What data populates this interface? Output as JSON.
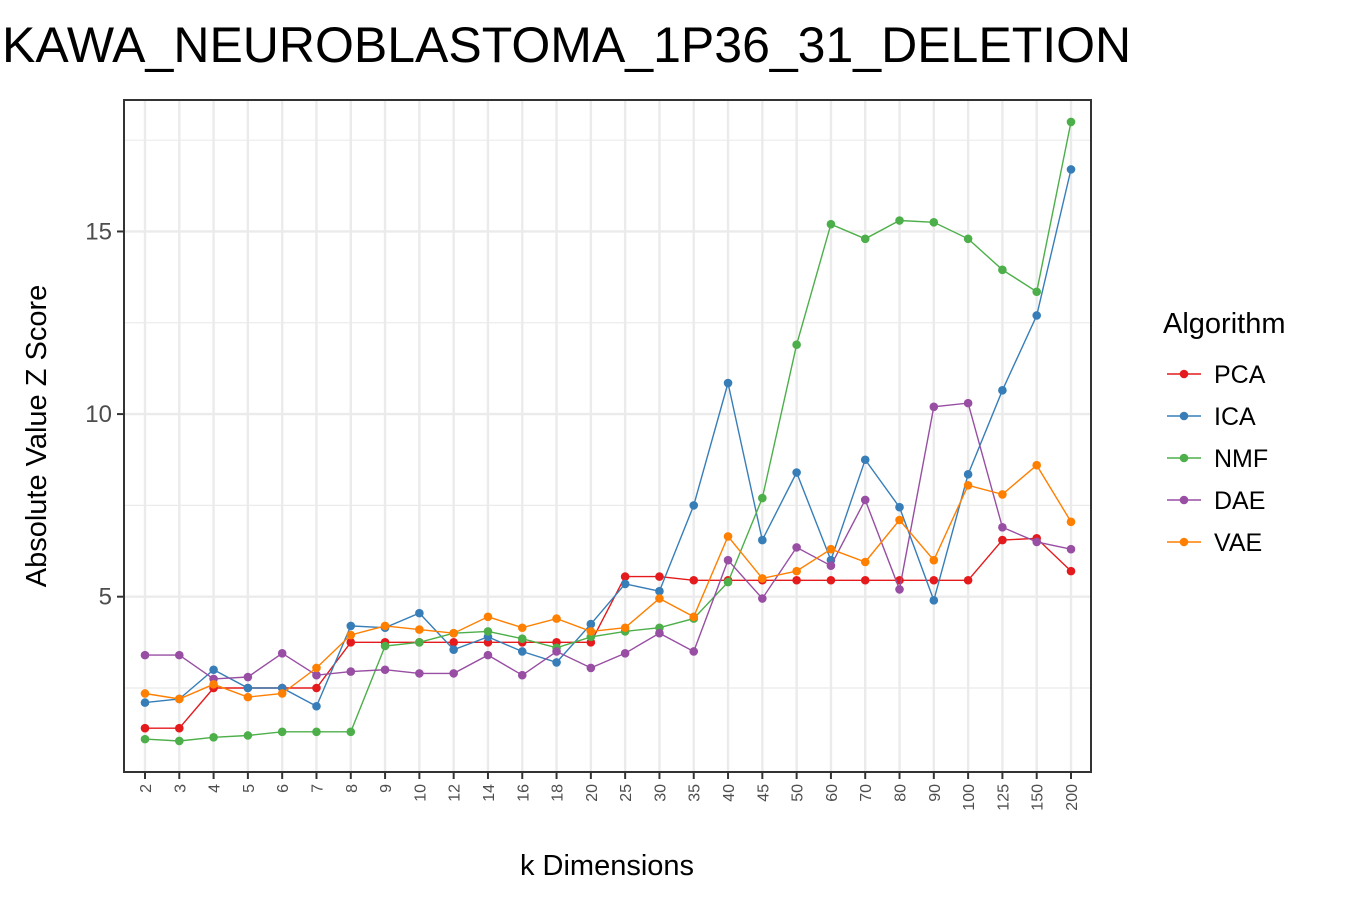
{
  "chart_data": {
    "type": "line",
    "title": "KAWA_NEUROBLASTOMA_1P36_31_DELETION",
    "xlabel": "k Dimensions",
    "ylabel": "Absolute Value Z Score",
    "categories": [
      "2",
      "3",
      "4",
      "5",
      "6",
      "7",
      "8",
      "9",
      "10",
      "12",
      "14",
      "16",
      "18",
      "20",
      "25",
      "30",
      "35",
      "40",
      "45",
      "50",
      "60",
      "70",
      "80",
      "90",
      "100",
      "125",
      "150",
      "200"
    ],
    "ylim": [
      0.2,
      18.6
    ],
    "yticks": [
      5,
      10,
      15
    ],
    "ytick_labels": [
      "5",
      "10",
      "15"
    ],
    "grid": true,
    "legend": {
      "title": "Algorithm",
      "position": "right"
    },
    "series": [
      {
        "name": "PCA",
        "color": "#E41A1C",
        "values": [
          1.4,
          1.4,
          2.5,
          2.5,
          2.5,
          2.5,
          3.75,
          3.75,
          3.75,
          3.75,
          3.75,
          3.75,
          3.75,
          3.75,
          5.55,
          5.55,
          5.45,
          5.45,
          5.45,
          5.45,
          5.45,
          5.45,
          5.45,
          5.45,
          5.45,
          6.55,
          6.6,
          5.7
        ]
      },
      {
        "name": "ICA",
        "color": "#377EB8",
        "values": [
          2.1,
          2.2,
          3.0,
          2.5,
          2.5,
          2.0,
          4.2,
          4.15,
          4.55,
          3.55,
          3.9,
          3.5,
          3.2,
          4.25,
          5.35,
          5.15,
          7.5,
          10.85,
          6.55,
          8.4,
          6.0,
          8.75,
          7.45,
          4.9,
          8.35,
          10.65,
          12.7,
          16.7
        ]
      },
      {
        "name": "NMF",
        "color": "#4DAF4A",
        "values": [
          1.1,
          1.05,
          1.15,
          1.2,
          1.3,
          1.3,
          1.3,
          3.65,
          3.75,
          4.0,
          4.05,
          3.85,
          3.6,
          3.9,
          4.05,
          4.15,
          4.4,
          5.4,
          7.7,
          11.9,
          15.2,
          14.8,
          15.3,
          15.25,
          14.8,
          13.95,
          13.35,
          18.0
        ]
      },
      {
        "name": "DAE",
        "color": "#984EA3",
        "values": [
          3.4,
          3.4,
          2.75,
          2.8,
          3.45,
          2.85,
          2.95,
          3.0,
          2.9,
          2.9,
          3.4,
          2.85,
          3.5,
          3.05,
          3.45,
          4.0,
          3.5,
          6.0,
          4.95,
          6.35,
          5.85,
          7.65,
          5.2,
          10.2,
          10.3,
          6.9,
          6.5,
          6.3
        ]
      },
      {
        "name": "VAE",
        "color": "#FF7F00",
        "values": [
          2.35,
          2.2,
          2.6,
          2.25,
          2.35,
          3.05,
          3.95,
          4.2,
          4.1,
          4.0,
          4.45,
          4.15,
          4.4,
          4.05,
          4.15,
          4.95,
          4.45,
          6.65,
          5.5,
          5.7,
          6.3,
          5.95,
          7.1,
          6.0,
          8.05,
          7.8,
          8.6,
          7.05
        ]
      }
    ]
  }
}
